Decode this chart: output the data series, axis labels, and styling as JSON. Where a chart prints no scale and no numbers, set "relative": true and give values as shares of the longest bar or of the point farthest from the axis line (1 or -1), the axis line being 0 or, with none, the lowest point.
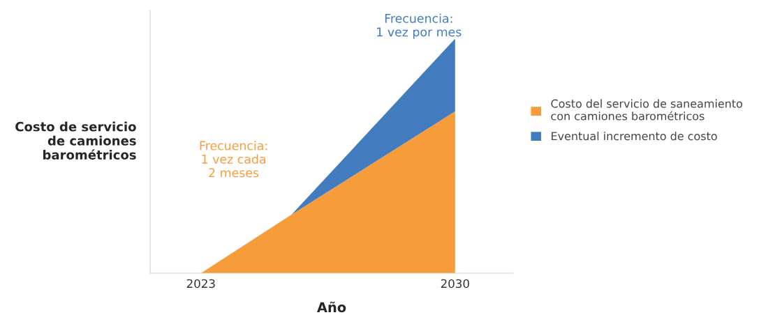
{
  "chart_data": {
    "type": "area",
    "stacked": true,
    "relative": true,
    "xlabel": "Año",
    "ylabel": "Costo de servicio\nde camiones\nbarométricos",
    "x": [
      2023,
      2025.5,
      2030
    ],
    "xlim": [
      2021.6,
      2031.6
    ],
    "xticks": [
      2023,
      2030
    ],
    "series": [
      {
        "name": "Costo del servicio de saneamiento\ncon camiones barométricos",
        "color": "#f79c3a",
        "values": [
          0,
          0.25,
          0.69
        ]
      },
      {
        "name": "Eventual incremento de costo",
        "color": "#427cbf",
        "values": [
          0,
          0,
          0.31
        ]
      }
    ],
    "annotations": [
      "Frecuencia:\n1 vez cada\n2 meses",
      "Frecuencia:\n1 vez por mes"
    ],
    "legend": "right",
    "grid": false
  }
}
